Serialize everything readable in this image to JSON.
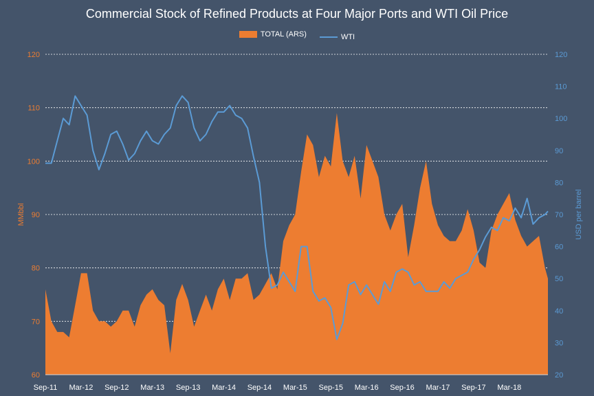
{
  "chart_data": {
    "type": "area",
    "title": "Commercial Stock of Refined Products at Four Major Ports and WTI Oil Price",
    "legend_position": "top",
    "grid": true,
    "x_ticks": [
      "Sep-11",
      "Mar-12",
      "Sep-12",
      "Mar-13",
      "Sep-13",
      "Mar-14",
      "Sep-14",
      "Mar-15",
      "Sep-15",
      "Mar-16",
      "Sep-16",
      "Mar-17",
      "Sep-17",
      "Mar-18"
    ],
    "y_left": {
      "label": "MMbbl",
      "ylim": [
        60,
        120
      ],
      "ticks": [
        60,
        70,
        80,
        90,
        100,
        110,
        120
      ]
    },
    "y_right": {
      "label": "USD per barrel",
      "ylim": [
        20,
        120
      ],
      "ticks": [
        20,
        30,
        40,
        50,
        60,
        70,
        80,
        90,
        100,
        110,
        120
      ]
    },
    "x_range": [
      0,
      84.5
    ],
    "series": [
      {
        "name": "TOTAL (ARS)",
        "type": "area",
        "axis": "left",
        "color": "#ed7d31",
        "x": [
          0,
          1,
          2,
          3,
          4,
          5,
          6,
          7,
          8,
          9,
          10,
          11,
          12,
          13,
          14,
          15,
          16,
          17,
          18,
          19,
          20,
          21,
          22,
          23,
          24,
          25,
          26,
          27,
          28,
          29,
          30,
          31,
          32,
          33,
          34,
          35,
          36,
          37,
          38,
          39,
          40,
          41,
          42,
          43,
          44,
          45,
          46,
          47,
          48,
          49,
          50,
          51,
          52,
          53,
          54,
          55,
          56,
          57,
          58,
          59,
          60,
          61,
          62,
          63,
          64,
          65,
          66,
          67,
          68,
          69,
          70,
          71,
          72,
          73,
          74,
          75,
          76,
          77,
          78,
          79,
          80,
          81,
          82,
          83,
          84
        ],
        "values": [
          76,
          70,
          68,
          68,
          67,
          73,
          79,
          79,
          72,
          70,
          70,
          69,
          70,
          72,
          72,
          69,
          73,
          75,
          76,
          74,
          73,
          64,
          74,
          77,
          74,
          69,
          72,
          75,
          72,
          76,
          78,
          74,
          78,
          78,
          79,
          74,
          75,
          77,
          79,
          76,
          85,
          88,
          90,
          98,
          105,
          103,
          97,
          101,
          99,
          109,
          100,
          97,
          101,
          93,
          103,
          100,
          97,
          90,
          87,
          90,
          92,
          82,
          88,
          95,
          100,
          92,
          88,
          86,
          85,
          85,
          87,
          91,
          87,
          81,
          80,
          87,
          90,
          92,
          94,
          89,
          86,
          84,
          85,
          86,
          80
        ],
        "end_x": 84.5,
        "end_value": 78
      },
      {
        "name": "WTI",
        "type": "line",
        "axis": "right",
        "color": "#5b9bd5",
        "x": [
          0,
          1,
          2,
          3,
          4,
          5,
          6,
          7,
          8,
          9,
          10,
          11,
          12,
          13,
          14,
          15,
          16,
          17,
          18,
          19,
          20,
          21,
          22,
          23,
          24,
          25,
          26,
          27,
          28,
          29,
          30,
          31,
          32,
          33,
          34,
          35,
          36,
          37,
          38,
          39,
          40,
          41,
          42,
          43,
          44,
          45,
          46,
          47,
          48,
          49,
          50,
          51,
          52,
          53,
          54,
          55,
          56,
          57,
          58,
          59,
          60,
          61,
          62,
          63,
          64,
          65,
          66,
          67,
          68,
          69,
          70,
          71,
          72,
          73,
          74,
          75,
          76,
          77,
          78,
          79,
          80,
          81,
          82,
          83,
          84
        ],
        "values": [
          86,
          86,
          93,
          100,
          98,
          107,
          104,
          101,
          90,
          84,
          89,
          95,
          96,
          92,
          87,
          89,
          93,
          96,
          93,
          92,
          95,
          97,
          104,
          107,
          105,
          97,
          93,
          95,
          99,
          102,
          102,
          104,
          101,
          100,
          97,
          88,
          80,
          60,
          47,
          48,
          52,
          49,
          46,
          60,
          60,
          46,
          43,
          44,
          41,
          31,
          36,
          48,
          49,
          45,
          48,
          45,
          42,
          49,
          46,
          52,
          53,
          52,
          48,
          49,
          46,
          46,
          46,
          49,
          47,
          50,
          51,
          52,
          56,
          59,
          63,
          66,
          65,
          69,
          68,
          72,
          69,
          75,
          67,
          69,
          70
        ],
        "end_x": 84.5,
        "end_value": 71
      }
    ]
  }
}
